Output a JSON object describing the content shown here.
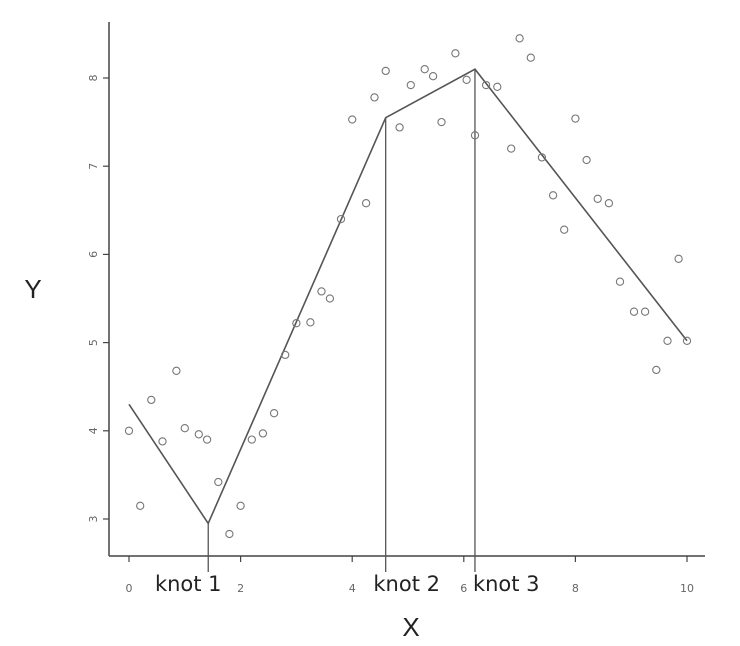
{
  "chart_data": {
    "type": "scatter",
    "title": "",
    "xlabel": "X",
    "ylabel": "Y",
    "xlim": [
      0,
      10
    ],
    "ylim": [
      2.8,
      8.55
    ],
    "x_ticks": [
      0,
      2,
      4,
      6,
      8,
      10
    ],
    "y_ticks": [
      3,
      4,
      5,
      6,
      7,
      8
    ],
    "grid": false,
    "points": [
      [
        0.0,
        4.0
      ],
      [
        0.2,
        3.15
      ],
      [
        0.4,
        4.35
      ],
      [
        0.6,
        3.88
      ],
      [
        0.85,
        4.68
      ],
      [
        1.0,
        4.03
      ],
      [
        1.25,
        3.96
      ],
      [
        1.4,
        3.9
      ],
      [
        1.6,
        3.42
      ],
      [
        1.8,
        2.83
      ],
      [
        2.0,
        3.15
      ],
      [
        2.2,
        3.9
      ],
      [
        2.4,
        3.97
      ],
      [
        2.6,
        4.2
      ],
      [
        2.8,
        4.86
      ],
      [
        3.0,
        5.22
      ],
      [
        3.25,
        5.23
      ],
      [
        3.45,
        5.58
      ],
      [
        3.6,
        5.5
      ],
      [
        3.8,
        6.4
      ],
      [
        4.0,
        7.53
      ],
      [
        4.25,
        6.58
      ],
      [
        4.4,
        7.78
      ],
      [
        4.6,
        8.08
      ],
      [
        4.85,
        7.44
      ],
      [
        5.05,
        7.92
      ],
      [
        5.3,
        8.1
      ],
      [
        5.45,
        8.02
      ],
      [
        5.6,
        7.5
      ],
      [
        5.85,
        8.28
      ],
      [
        6.05,
        7.98
      ],
      [
        6.2,
        7.35
      ],
      [
        6.4,
        7.92
      ],
      [
        6.6,
        7.9
      ],
      [
        6.85,
        7.2
      ],
      [
        7.0,
        8.45
      ],
      [
        7.2,
        8.23
      ],
      [
        7.4,
        7.1
      ],
      [
        7.6,
        6.67
      ],
      [
        7.8,
        6.28
      ],
      [
        8.0,
        7.54
      ],
      [
        8.2,
        7.07
      ],
      [
        8.4,
        6.63
      ],
      [
        8.6,
        6.58
      ],
      [
        8.8,
        5.69
      ],
      [
        9.05,
        5.35
      ],
      [
        9.25,
        5.35
      ],
      [
        9.45,
        4.69
      ],
      [
        9.65,
        5.02
      ],
      [
        9.85,
        5.95
      ],
      [
        10.0,
        5.02
      ]
    ],
    "fit_line": [
      [
        0.0,
        4.3
      ],
      [
        1.42,
        2.95
      ],
      [
        4.6,
        7.55
      ],
      [
        6.2,
        8.1
      ],
      [
        10.0,
        5.02
      ]
    ],
    "knots": [
      {
        "x": 1.42,
        "label": "knot 1"
      },
      {
        "x": 4.6,
        "label": "knot 2"
      },
      {
        "x": 6.2,
        "label": "knot 3"
      }
    ]
  }
}
